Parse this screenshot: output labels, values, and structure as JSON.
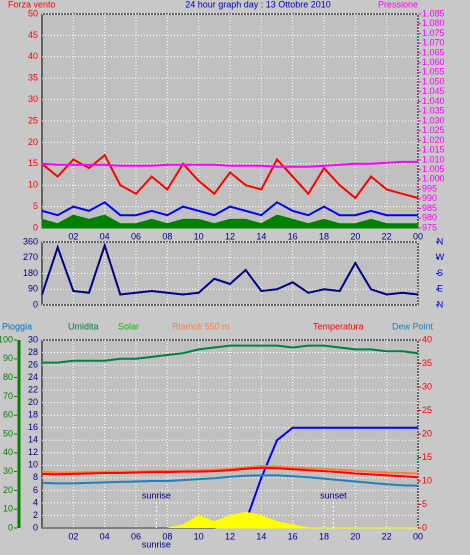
{
  "chart_data": [
    {
      "type": "line",
      "title": "24 hour graph day : 13 Ottobre 2010",
      "y_label": "Forza vento",
      "y2_label": "Pressione",
      "x": [
        0,
        1,
        2,
        3,
        4,
        5,
        6,
        7,
        8,
        9,
        10,
        11,
        12,
        13,
        14,
        15,
        16,
        17,
        18,
        19,
        20,
        21,
        22,
        23,
        24
      ],
      "xlim": [
        0,
        24
      ],
      "xticks": [
        {
          "value": 2,
          "label": "02"
        },
        {
          "value": 4,
          "label": "04"
        },
        {
          "value": 6,
          "label": "06"
        },
        {
          "value": 8,
          "label": "08"
        },
        10,
        12,
        14,
        16,
        18,
        20,
        22,
        {
          "value": 24,
          "label": "00"
        }
      ],
      "ylim": [
        0,
        50
      ],
      "yticks": [
        0,
        5,
        10,
        15,
        20,
        25,
        30,
        35,
        40,
        45,
        50
      ],
      "y2lim": [
        975,
        1085
      ],
      "y2ticks": [
        975,
        980,
        985,
        990,
        995,
        {
          "value": 1000,
          "label": "1.000"
        },
        {
          "value": 1005,
          "label": "1.005"
        },
        {
          "value": 1010,
          "label": "1.010"
        },
        {
          "value": 1015,
          "label": "1.015"
        },
        {
          "value": 1020,
          "label": "1.020"
        },
        {
          "value": 1025,
          "label": "1.025"
        },
        {
          "value": 1030,
          "label": "1.030"
        },
        {
          "value": 1035,
          "label": "1.035"
        },
        {
          "value": 1040,
          "label": "1.040"
        },
        {
          "value": 1045,
          "label": "1.045"
        },
        {
          "value": 1050,
          "label": "1.050"
        },
        {
          "value": 1055,
          "label": "1.055"
        },
        {
          "value": 1060,
          "label": "1.060"
        },
        {
          "value": 1065,
          "label": "1.065"
        },
        {
          "value": 1070,
          "label": "1.070"
        },
        {
          "value": 1075,
          "label": "1.075"
        },
        {
          "value": 1080,
          "label": "1.080"
        },
        {
          "value": 1085,
          "label": "1.085"
        }
      ],
      "grid": true,
      "y_color": "#ff0000",
      "y2_color": "#ff00ff",
      "series": [
        {
          "color": "#ff0000",
          "values": [
            15,
            12,
            16,
            14,
            17,
            10,
            8,
            12,
            9,
            15,
            11,
            8,
            13,
            10,
            9,
            16,
            12,
            8,
            14,
            10,
            7,
            12,
            9,
            8,
            7
          ]
        },
        {
          "color": "#008000",
          "fill": true,
          "values": [
            2,
            1,
            3,
            2,
            3,
            1,
            1,
            2,
            1,
            2,
            2,
            1,
            2,
            2,
            1,
            3,
            2,
            1,
            2,
            1,
            1,
            2,
            1,
            1,
            1
          ]
        },
        {
          "color": "#0000ff",
          "values": [
            4,
            3,
            5,
            4,
            6,
            3,
            3,
            4,
            3,
            5,
            4,
            3,
            5,
            4,
            3,
            6,
            4,
            3,
            5,
            3,
            3,
            4,
            3,
            3,
            3
          ]
        },
        {
          "color": "#ff00ff",
          "axis": "y2",
          "values": [
            1008,
            1007.5,
            1007.5,
            1007.5,
            1007.5,
            1007,
            1007,
            1007,
            1007.5,
            1007.5,
            1007.5,
            1007.5,
            1007,
            1007,
            1007,
            1006.5,
            1006.5,
            1006.5,
            1007,
            1007.5,
            1008,
            1008,
            1008.5,
            1009,
            1009
          ]
        }
      ]
    },
    {
      "type": "line",
      "x": [
        0,
        1,
        2,
        3,
        4,
        5,
        6,
        7,
        8,
        9,
        10,
        11,
        12,
        13,
        14,
        15,
        16,
        17,
        18,
        19,
        20,
        21,
        22,
        23,
        24
      ],
      "xlim": [
        0,
        24
      ],
      "xticks": [
        {
          "value": 2,
          "label": "02"
        },
        {
          "value": 4,
          "label": "04"
        },
        {
          "value": 6,
          "label": "06"
        },
        {
          "value": 8,
          "label": "08"
        },
        10,
        12,
        14,
        16,
        18,
        20,
        22,
        {
          "value": 24,
          "label": "00"
        }
      ],
      "ylim": [
        0,
        360
      ],
      "yticks": [
        0,
        90,
        180,
        270,
        360
      ],
      "y2lim": [
        0,
        360
      ],
      "y2ticks": [
        {
          "value": 360,
          "label": "N"
        },
        {
          "value": 270,
          "label": "W"
        },
        {
          "value": 180,
          "label": "S"
        },
        {
          "value": 90,
          "label": "E"
        },
        {
          "value": 0,
          "label": "N"
        }
      ],
      "grid": true,
      "y_color": "#000080",
      "y2_color": "#0000c0",
      "series": [
        {
          "color": "#000080",
          "values": [
            60,
            330,
            80,
            70,
            340,
            60,
            70,
            80,
            70,
            60,
            70,
            150,
            120,
            200,
            80,
            90,
            130,
            70,
            90,
            80,
            240,
            90,
            60,
            70,
            60
          ]
        }
      ]
    },
    {
      "type": "line",
      "x": [
        0,
        1,
        2,
        3,
        4,
        5,
        6,
        7,
        8,
        9,
        10,
        11,
        12,
        13,
        14,
        15,
        16,
        17,
        18,
        19,
        20,
        21,
        22,
        23,
        24
      ],
      "xlim": [
        0,
        24
      ],
      "xticks": [
        {
          "value": 2,
          "label": "02"
        },
        {
          "value": 4,
          "label": "04"
        },
        {
          "value": 6,
          "label": "06"
        },
        {
          "value": 8,
          "label": "08"
        },
        10,
        12,
        14,
        16,
        18,
        20,
        22,
        {
          "value": 24,
          "label": "00"
        }
      ],
      "ylim": [
        0,
        100
      ],
      "yticks": [
        0,
        10,
        20,
        30,
        40,
        50,
        60,
        70,
        80,
        90,
        100
      ],
      "y3lim": [
        0,
        30
      ],
      "y3ticks": [
        0,
        2,
        4,
        6,
        8,
        10,
        12,
        14,
        16,
        18,
        20,
        22,
        24,
        26,
        28,
        30
      ],
      "y2lim": [
        0,
        40
      ],
      "y2ticks": [
        0,
        5,
        10,
        15,
        20,
        25,
        30,
        35,
        40
      ],
      "grid": true,
      "y_color": "#008000",
      "y3_color": "#000080",
      "y2_color": "#ff0000",
      "annotations": [
        {
          "text": "sunrise",
          "x": 7.3
        },
        {
          "text": "sunset",
          "x": 18.6
        }
      ],
      "x_note": {
        "text": "sunrise",
        "x": 7.3
      },
      "series": [
        {
          "name": "Pioggia",
          "label_color": "#0070c0",
          "color": "#0000ff",
          "axis": "y3",
          "values": [
            0,
            0,
            0,
            0,
            0,
            0,
            0,
            0,
            0,
            0,
            0,
            0,
            0.5,
            1,
            8,
            14,
            16,
            16,
            16,
            16,
            16,
            16,
            16,
            16,
            16
          ]
        },
        {
          "name": "Umidita",
          "label_color": "#008040",
          "color": "#008040",
          "values": [
            88,
            88,
            89,
            89,
            89,
            90,
            90,
            91,
            92,
            93,
            95,
            96,
            97,
            97,
            97,
            97,
            96,
            97,
            97,
            96,
            95,
            95,
            94,
            94,
            93
          ]
        },
        {
          "name": "Solar",
          "label_color": "#00c000",
          "color": "#ffff00",
          "fill": true,
          "axis": "y3",
          "values": [
            0,
            0,
            0,
            0,
            0,
            0,
            0,
            0,
            0,
            0.5,
            2,
            1,
            2,
            2.5,
            2,
            1,
            0.5,
            0,
            0,
            0,
            0,
            0,
            0,
            0,
            0
          ]
        },
        {
          "name": "Riamoli 550 m",
          "label_color": "#ff8040",
          "color": "#ff8040",
          "axis": "y2",
          "values": [
            12,
            11.8,
            11.8,
            11.9,
            12,
            12,
            12,
            12.1,
            12.2,
            12.2,
            12.3,
            12.4,
            12.6,
            12.9,
            13.2,
            13.1,
            12.9,
            12.7,
            12.6,
            12.4,
            12.2,
            12,
            11.8,
            11.7,
            11.6
          ]
        },
        {
          "name": "Temperatura",
          "label_color": "#ff0000",
          "color": "#ff0000",
          "axis": "y2",
          "values": [
            11.5,
            11.4,
            11.5,
            11.6,
            11.7,
            11.7,
            11.8,
            11.9,
            11.9,
            12,
            12,
            12.1,
            12.3,
            12.6,
            12.8,
            12.7,
            12.5,
            12.3,
            12.1,
            11.9,
            11.6,
            11.4,
            11.2,
            11,
            10.8
          ]
        },
        {
          "name": "Dew Point",
          "label_color": "#1e80c0",
          "color": "#1e80c0",
          "axis": "y2",
          "values": [
            9.6,
            9.5,
            9.5,
            9.6,
            9.7,
            9.8,
            9.9,
            10,
            10,
            10.2,
            10.4,
            10.6,
            10.9,
            11.1,
            11.2,
            11.2,
            11,
            10.8,
            10.5,
            10.2,
            9.9,
            9.6,
            9.3,
            9.1,
            9
          ]
        }
      ]
    }
  ]
}
